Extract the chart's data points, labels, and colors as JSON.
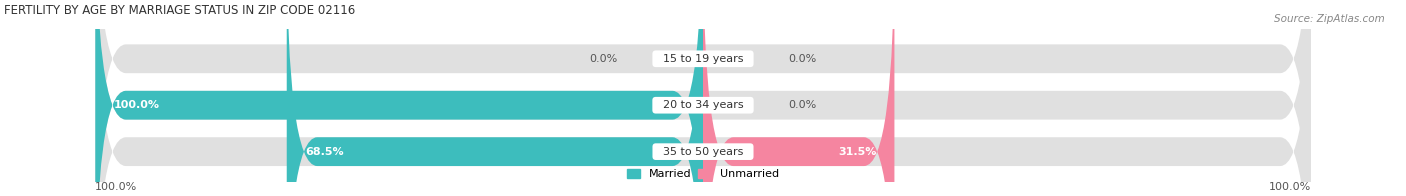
{
  "title": "FERTILITY BY AGE BY MARRIAGE STATUS IN ZIP CODE 02116",
  "source": "Source: ZipAtlas.com",
  "categories": [
    "15 to 19 years",
    "20 to 34 years",
    "35 to 50 years"
  ],
  "married_pct": [
    0.0,
    100.0,
    68.5
  ],
  "unmarried_pct": [
    0.0,
    0.0,
    31.5
  ],
  "married_color": "#3dbdbd",
  "unmarried_color": "#f585a0",
  "bar_bg_color": "#e0e0e0",
  "bar_height": 0.62,
  "figsize": [
    14.06,
    1.96
  ],
  "dpi": 100,
  "title_fontsize": 8.5,
  "source_fontsize": 7.5,
  "label_fontsize": 8,
  "cat_fontsize": 8,
  "legend_fontsize": 8,
  "xlim_left": -115,
  "xlim_right": 115,
  "axis_label_left": "100.0%",
  "axis_label_right": "100.0%",
  "rounding_size": 5.0
}
